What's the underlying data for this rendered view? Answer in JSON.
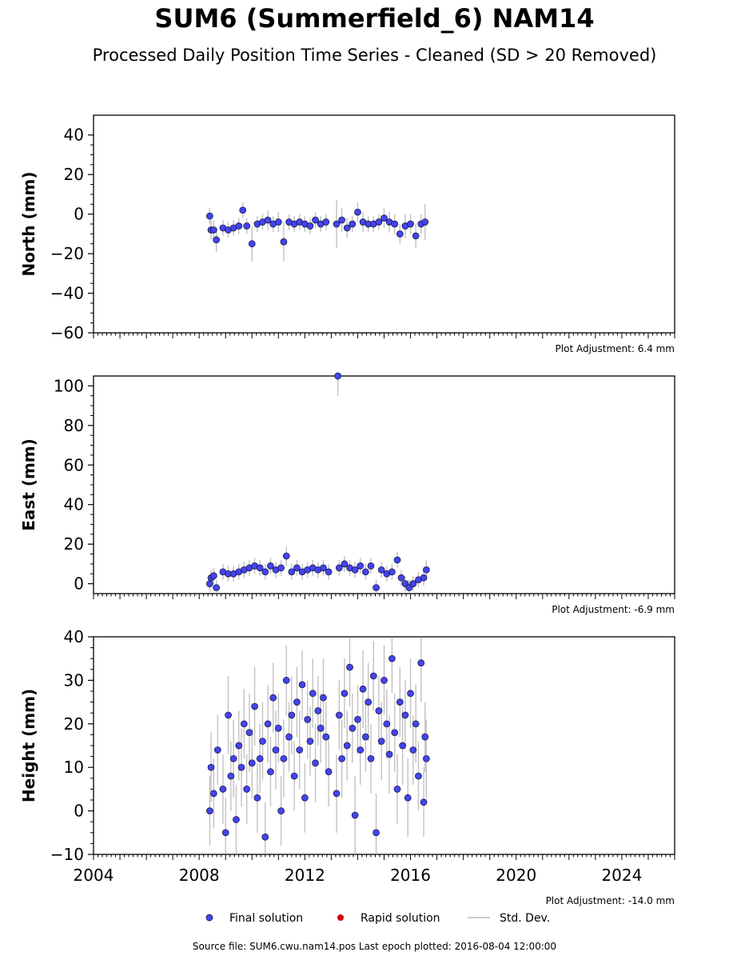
{
  "title": "SUM6 (Summerfield_6) NAM14",
  "subtitle": "Processed Daily Position Time Series - Cleaned (SD > 20 Removed)",
  "footer": "Source file: SUM6.cwu.nam14.pos  Last epoch plotted: 2016-08-04 12:00:00",
  "colors": {
    "final": "#4444ee",
    "rapid": "#dd0000",
    "std": "#999999",
    "axis": "#000000"
  },
  "chart_data": [
    {
      "type": "scatter",
      "ylabel": "North (mm)",
      "ylim": [
        -60,
        50
      ],
      "yticks": [
        -60,
        -40,
        -20,
        0,
        20,
        40
      ],
      "adjustment_label": "Plot Adjustment: 6.4 mm",
      "series": [
        {
          "name": "Final solution",
          "x": [
            2008.4,
            2008.45,
            2008.55,
            2008.65,
            2008.9,
            2009.1,
            2009.3,
            2009.5,
            2009.65,
            2009.8,
            2010.0,
            2010.2,
            2010.4,
            2010.6,
            2010.8,
            2011.0,
            2011.2,
            2011.4,
            2011.6,
            2011.8,
            2012.0,
            2012.2,
            2012.4,
            2012.6,
            2012.8,
            2013.2,
            2013.4,
            2013.6,
            2013.8,
            2014.0,
            2014.2,
            2014.4,
            2014.6,
            2014.8,
            2015.0,
            2015.2,
            2015.4,
            2015.6,
            2015.8,
            2016.0,
            2016.2,
            2016.4,
            2016.55
          ],
          "y": [
            -1,
            -8,
            -8,
            -13,
            -7,
            -8,
            -7,
            -6,
            2,
            -6,
            -15,
            -5,
            -4,
            -3,
            -5,
            -4,
            -14,
            -4,
            -5,
            -4,
            -5,
            -6,
            -3,
            -5,
            -4,
            -5,
            -3,
            -7,
            -5,
            1,
            -4,
            -5,
            -5,
            -4,
            -2,
            -4,
            -5,
            -10,
            -6,
            -5,
            -11,
            -5,
            -4
          ],
          "err": [
            4,
            5,
            5,
            6,
            4,
            4,
            4,
            4,
            4,
            4,
            9,
            4,
            4,
            5,
            4,
            5,
            10,
            4,
            4,
            4,
            4,
            4,
            4,
            4,
            4,
            12,
            6,
            5,
            4,
            5,
            5,
            4,
            4,
            4,
            5,
            5,
            5,
            5,
            6,
            5,
            6,
            5,
            9
          ]
        }
      ]
    },
    {
      "type": "scatter",
      "ylabel": "East (mm)",
      "ylim": [
        -5,
        105
      ],
      "yticks": [
        0,
        20,
        40,
        60,
        80,
        100
      ],
      "adjustment_label": "Plot Adjustment: -6.9 mm",
      "series": [
        {
          "name": "Final solution",
          "x": [
            2008.4,
            2008.45,
            2008.55,
            2008.65,
            2008.9,
            2009.1,
            2009.3,
            2009.5,
            2009.7,
            2009.9,
            2010.1,
            2010.3,
            2010.5,
            2010.7,
            2010.9,
            2011.1,
            2011.3,
            2011.5,
            2011.7,
            2011.9,
            2012.1,
            2012.3,
            2012.5,
            2012.7,
            2012.9,
            2013.25,
            2013.3,
            2013.5,
            2013.7,
            2013.9,
            2014.1,
            2014.3,
            2014.5,
            2014.7,
            2014.9,
            2015.1,
            2015.3,
            2015.5,
            2015.65,
            2015.8,
            2015.95,
            2016.1,
            2016.3,
            2016.5,
            2016.6
          ],
          "y": [
            0,
            3,
            4,
            -2,
            6,
            5,
            5,
            6,
            7,
            8,
            9,
            8,
            6,
            9,
            7,
            8,
            14,
            6,
            8,
            6,
            7,
            8,
            7,
            8,
            6,
            105,
            8,
            10,
            8,
            7,
            9,
            6,
            9,
            -2,
            7,
            5,
            6,
            12,
            3,
            0,
            -2,
            0,
            2,
            3,
            7
          ],
          "err": [
            4,
            4,
            4,
            4,
            4,
            4,
            4,
            4,
            4,
            4,
            4,
            4,
            4,
            4,
            4,
            4,
            5,
            4,
            4,
            4,
            4,
            4,
            4,
            4,
            4,
            10,
            4,
            4,
            4,
            4,
            4,
            4,
            4,
            4,
            4,
            4,
            4,
            4,
            4,
            4,
            4,
            4,
            4,
            4,
            5
          ]
        }
      ]
    },
    {
      "type": "scatter",
      "ylabel": "Height (mm)",
      "ylim": [
        -10,
        40
      ],
      "yticks": [
        -10,
        0,
        10,
        20,
        30,
        40
      ],
      "xlim": [
        2004,
        2026
      ],
      "xticks": [
        2004,
        2008,
        2012,
        2016,
        2020,
        2024
      ],
      "adjustment_label": "Plot Adjustment: -14.0 mm",
      "series": [
        {
          "name": "Final solution",
          "x": [
            2008.4,
            2008.45,
            2008.55,
            2008.7,
            2008.9,
            2009.0,
            2009.1,
            2009.2,
            2009.3,
            2009.4,
            2009.5,
            2009.6,
            2009.7,
            2009.8,
            2009.9,
            2010.0,
            2010.1,
            2010.2,
            2010.3,
            2010.4,
            2010.5,
            2010.6,
            2010.7,
            2010.8,
            2010.9,
            2011.0,
            2011.1,
            2011.2,
            2011.3,
            2011.4,
            2011.5,
            2011.6,
            2011.7,
            2011.8,
            2011.9,
            2012.0,
            2012.1,
            2012.2,
            2012.3,
            2012.4,
            2012.5,
            2012.6,
            2012.7,
            2012.8,
            2012.9,
            2013.2,
            2013.3,
            2013.4,
            2013.5,
            2013.6,
            2013.7,
            2013.8,
            2013.9,
            2014.0,
            2014.1,
            2014.2,
            2014.3,
            2014.4,
            2014.5,
            2014.6,
            2014.7,
            2014.8,
            2014.9,
            2015.0,
            2015.1,
            2015.2,
            2015.3,
            2015.4,
            2015.5,
            2015.6,
            2015.7,
            2015.8,
            2015.9,
            2016.0,
            2016.1,
            2016.2,
            2016.3,
            2016.4,
            2016.5,
            2016.55,
            2016.6
          ],
          "y": [
            0,
            10,
            4,
            14,
            5,
            -5,
            22,
            8,
            12,
            -2,
            15,
            10,
            20,
            5,
            18,
            11,
            24,
            3,
            12,
            16,
            -6,
            20,
            9,
            26,
            14,
            19,
            0,
            12,
            30,
            17,
            22,
            8,
            25,
            14,
            29,
            3,
            21,
            16,
            27,
            11,
            23,
            19,
            26,
            17,
            9,
            4,
            22,
            12,
            27,
            15,
            33,
            19,
            -1,
            21,
            14,
            28,
            17,
            25,
            12,
            31,
            -5,
            23,
            16,
            30,
            20,
            13,
            35,
            18,
            5,
            25,
            15,
            22,
            3,
            27,
            14,
            20,
            8,
            34,
            2,
            17,
            12
          ],
          "err": [
            8,
            8,
            8,
            8,
            8,
            8,
            9,
            8,
            9,
            8,
            8,
            9,
            8,
            8,
            9,
            8,
            9,
            8,
            8,
            9,
            8,
            9,
            8,
            8,
            9,
            8,
            8,
            9,
            8,
            8,
            9,
            8,
            8,
            9,
            8,
            8,
            9,
            8,
            8,
            9,
            8,
            8,
            9,
            8,
            8,
            9,
            8,
            9,
            8,
            8,
            9,
            8,
            9,
            8,
            8,
            9,
            8,
            9,
            8,
            8,
            9,
            8,
            9,
            8,
            8,
            9,
            8,
            9,
            8,
            8,
            9,
            8,
            9,
            8,
            8,
            9,
            8,
            9,
            8,
            8,
            9
          ]
        }
      ]
    }
  ],
  "legend": [
    {
      "label": "Final solution",
      "marker": "dot-blue"
    },
    {
      "label": "Rapid solution",
      "marker": "dot-red"
    },
    {
      "label": "Std. Dev.",
      "marker": "line-gray"
    }
  ]
}
